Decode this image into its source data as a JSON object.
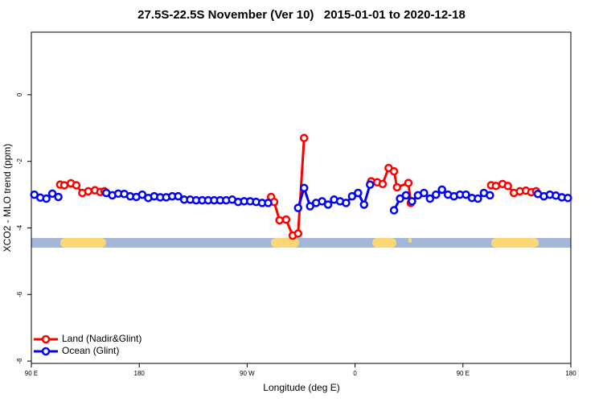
{
  "chart_data": {
    "type": "line",
    "title": "27.5S-22.5S November (Ver 10)   2015-01-01 to 2020-12-18",
    "x_label": "Longitude (deg E)",
    "y_label": "XCO2 - MLO trend (ppm)",
    "xlim": [
      90,
      540
    ],
    "xticks": [
      {
        "value": 90,
        "label": "90 E"
      },
      180,
      {
        "value": 270,
        "label": "90 W"
      },
      {
        "value": 360,
        "label": "0"
      },
      {
        "value": 450,
        "label": "90 E"
      },
      {
        "value": 540,
        "label": "180"
      }
    ],
    "ylim": [
      -8.07,
      1.88
    ],
    "yticks": [
      0,
      -2,
      -4,
      -6,
      -8
    ],
    "legend": "bottom-left",
    "series": [
      {
        "name": "Land (Nadir&Glint)",
        "color": "#ff0000",
        "x": [
          114,
          117.5,
          123,
          127.5,
          132.5,
          137.5,
          143,
          147.5,
          151,
          null,
          290,
          292.5,
          297,
          302.5,
          308,
          312.5,
          317.5,
          null,
          373.5,
          378.5,
          383,
          388,
          392.5,
          395,
          404.5,
          406.5,
          null,
          473.5,
          477.5,
          483,
          487.5,
          492.5,
          497.5,
          502.5,
          507,
          511
        ],
        "values": [
          -2.7,
          -2.72,
          -2.66,
          -2.72,
          -2.95,
          -2.9,
          -2.87,
          -2.92,
          -2.9,
          null,
          -3.07,
          -3.22,
          -3.77,
          -3.75,
          -4.23,
          -4.17,
          -1.3,
          null,
          -2.6,
          -2.63,
          -2.68,
          -2.2,
          -2.3,
          -2.78,
          -2.65,
          -3.25,
          null,
          -2.72,
          -2.74,
          -2.68,
          -2.74,
          -2.95,
          -2.9,
          -2.88,
          -2.93,
          -2.9
        ]
      },
      {
        "name": "Ocean (Glint)",
        "color": "#0000ff",
        "x": [
          92.5,
          97.5,
          102.5,
          107.5,
          112.5,
          null,
          152.5,
          157.5,
          162.5,
          167.5,
          172.5,
          177.5,
          182.5,
          187.5,
          192.5,
          197.5,
          202.5,
          207.5,
          212.5,
          217.5,
          222.5,
          227.5,
          232.5,
          237.5,
          242.5,
          247.5,
          252.5,
          257.5,
          262.5,
          267.5,
          272.5,
          277.5,
          282.5,
          287.5,
          null,
          312.5,
          317.5,
          322.5,
          327.5,
          332.5,
          337.5,
          342.5,
          347.5,
          352.5,
          357.5,
          362.5,
          367.5,
          372.5,
          null,
          392.5,
          397.5,
          402.5,
          407.5,
          412.5,
          417.5,
          422.5,
          427.5,
          432.5,
          437.5,
          442.5,
          447.5,
          452.5,
          457.5,
          462.5,
          467.5,
          472.5,
          null,
          512.5,
          517.5,
          522.5,
          527.5,
          532.5,
          537.5
        ],
        "values": [
          -3.0,
          -3.09,
          -3.12,
          -2.97,
          -3.07,
          null,
          -2.95,
          -3.02,
          -2.97,
          -2.98,
          -3.05,
          -3.07,
          -3.0,
          -3.1,
          -3.05,
          -3.08,
          -3.08,
          -3.05,
          -3.05,
          -3.15,
          -3.15,
          -3.17,
          -3.17,
          -3.17,
          -3.17,
          -3.17,
          -3.17,
          -3.15,
          -3.22,
          -3.2,
          -3.2,
          -3.22,
          -3.25,
          -3.25,
          null,
          -3.4,
          -2.8,
          -3.35,
          -3.25,
          -3.2,
          -3.3,
          -3.15,
          -3.2,
          -3.25,
          -3.05,
          -2.95,
          -3.3,
          -2.7,
          null,
          -3.47,
          -3.12,
          -3.02,
          -3.2,
          -3.02,
          -2.95,
          -3.12,
          -3.0,
          -2.85,
          -3.0,
          -3.05,
          -3.0,
          -3.0,
          -3.1,
          -3.12,
          -2.95,
          -3.02,
          null,
          -2.98,
          -3.05,
          -3.0,
          -3.03,
          -3.08,
          -3.1
        ]
      }
    ]
  }
}
